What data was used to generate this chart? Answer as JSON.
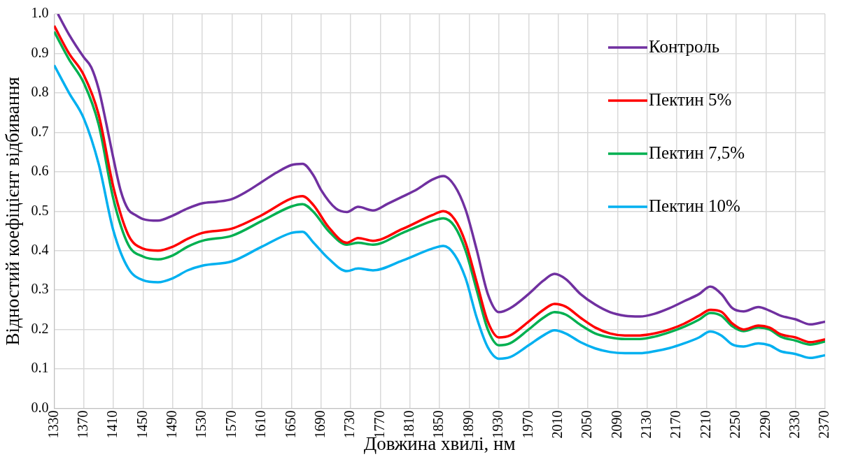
{
  "chart_data": {
    "type": "line",
    "xlabel": "Довжина хвилі, нм",
    "ylabel": "Відностий коефіцієнт відбивання",
    "xlim": [
      1330,
      2370
    ],
    "xticks": [
      1330,
      1370,
      1410,
      1450,
      1490,
      1530,
      1570,
      1610,
      1650,
      1690,
      1730,
      1770,
      1810,
      1850,
      1890,
      1930,
      1970,
      2010,
      2050,
      2090,
      2130,
      2170,
      2210,
      2250,
      2290,
      2330,
      2370
    ],
    "ylim": [
      0,
      1
    ],
    "yticks": [
      {
        "value": 0,
        "label": "0.0"
      },
      0.1,
      0.2,
      0.3,
      0.4,
      0.5,
      0.6,
      0.7,
      0.8,
      0.9,
      {
        "value": 1,
        "label": "1.0"
      }
    ],
    "grid": true,
    "legend": "top right",
    "marker": "none",
    "line_style": "solid",
    "series": [
      {
        "name": "Контроль",
        "color": "#7030a0",
        "x": [
          1335,
          1350,
          1370,
          1380,
          1390,
          1400,
          1410,
          1420,
          1430,
          1440,
          1450,
          1470,
          1490,
          1510,
          1530,
          1550,
          1570,
          1590,
          1610,
          1630,
          1650,
          1665,
          1680,
          1690,
          1710,
          1725,
          1740,
          1760,
          1780,
          1800,
          1820,
          1840,
          1855,
          1870,
          1885,
          1900,
          1915,
          1930,
          1945,
          1970,
          1990,
          2005,
          2020,
          2040,
          2060,
          2080,
          2100,
          2120,
          2140,
          2160,
          2180,
          2200,
          2215,
          2230,
          2245,
          2260,
          2280,
          2295,
          2310,
          2330,
          2350,
          2370
        ],
        "values": [
          1.0,
          0.948,
          0.89,
          0.865,
          0.81,
          0.725,
          0.633,
          0.55,
          0.504,
          0.49,
          0.48,
          0.476,
          0.489,
          0.507,
          0.52,
          0.524,
          0.531,
          0.55,
          0.574,
          0.598,
          0.617,
          0.62,
          0.59,
          0.554,
          0.507,
          0.498,
          0.511,
          0.502,
          0.519,
          0.537,
          0.556,
          0.58,
          0.589,
          0.565,
          0.504,
          0.402,
          0.29,
          0.244,
          0.254,
          0.29,
          0.324,
          0.341,
          0.328,
          0.29,
          0.263,
          0.244,
          0.235,
          0.233,
          0.24,
          0.254,
          0.272,
          0.29,
          0.309,
          0.29,
          0.254,
          0.246,
          0.257,
          0.248,
          0.235,
          0.226,
          0.213,
          0.22
        ]
      },
      {
        "name": "Пектин 5%",
        "color": "#ff0000",
        "x": [
          1330,
          1350,
          1370,
          1390,
          1410,
          1430,
          1450,
          1470,
          1490,
          1510,
          1530,
          1570,
          1610,
          1650,
          1665,
          1680,
          1700,
          1725,
          1740,
          1760,
          1800,
          1840,
          1855,
          1870,
          1885,
          1900,
          1915,
          1930,
          1945,
          1970,
          1990,
          2005,
          2020,
          2040,
          2060,
          2080,
          2100,
          2120,
          2140,
          2160,
          2180,
          2200,
          2215,
          2230,
          2245,
          2260,
          2280,
          2295,
          2310,
          2330,
          2350,
          2370
        ],
        "values": [
          0.97,
          0.9,
          0.845,
          0.745,
          0.56,
          0.44,
          0.405,
          0.4,
          0.41,
          0.43,
          0.445,
          0.456,
          0.49,
          0.532,
          0.538,
          0.515,
          0.46,
          0.42,
          0.432,
          0.425,
          0.455,
          0.49,
          0.5,
          0.48,
          0.42,
          0.32,
          0.22,
          0.18,
          0.185,
          0.22,
          0.25,
          0.265,
          0.258,
          0.23,
          0.205,
          0.19,
          0.185,
          0.185,
          0.19,
          0.2,
          0.215,
          0.235,
          0.25,
          0.245,
          0.215,
          0.2,
          0.21,
          0.205,
          0.188,
          0.18,
          0.168,
          0.175
        ]
      },
      {
        "name": "Пектин 7,5%",
        "color": "#00b050",
        "x": [
          1330,
          1350,
          1370,
          1390,
          1410,
          1430,
          1450,
          1470,
          1490,
          1510,
          1530,
          1570,
          1610,
          1650,
          1665,
          1680,
          1700,
          1725,
          1740,
          1760,
          1800,
          1840,
          1855,
          1870,
          1885,
          1900,
          1915,
          1930,
          1945,
          1970,
          1990,
          2005,
          2020,
          2040,
          2060,
          2080,
          2100,
          2120,
          2140,
          2160,
          2180,
          2200,
          2215,
          2230,
          2245,
          2260,
          2280,
          2295,
          2310,
          2330,
          2350,
          2370
        ],
        "values": [
          0.955,
          0.885,
          0.825,
          0.72,
          0.53,
          0.415,
          0.385,
          0.378,
          0.388,
          0.41,
          0.425,
          0.438,
          0.475,
          0.512,
          0.518,
          0.498,
          0.45,
          0.415,
          0.42,
          0.415,
          0.445,
          0.475,
          0.482,
          0.462,
          0.4,
          0.3,
          0.2,
          0.16,
          0.165,
          0.2,
          0.23,
          0.244,
          0.238,
          0.212,
          0.19,
          0.18,
          0.176,
          0.176,
          0.182,
          0.193,
          0.207,
          0.225,
          0.242,
          0.235,
          0.208,
          0.196,
          0.205,
          0.2,
          0.182,
          0.172,
          0.162,
          0.17
        ]
      },
      {
        "name": "Пектин 10%",
        "color": "#00b0f0",
        "x": [
          1330,
          1350,
          1370,
          1390,
          1410,
          1430,
          1450,
          1470,
          1490,
          1510,
          1530,
          1570,
          1610,
          1650,
          1665,
          1680,
          1700,
          1725,
          1740,
          1760,
          1800,
          1840,
          1855,
          1870,
          1885,
          1900,
          1915,
          1930,
          1945,
          1970,
          1990,
          2005,
          2020,
          2040,
          2060,
          2080,
          2100,
          2120,
          2140,
          2160,
          2180,
          2200,
          2215,
          2230,
          2245,
          2260,
          2280,
          2295,
          2310,
          2330,
          2350,
          2370
        ],
        "values": [
          0.87,
          0.8,
          0.735,
          0.62,
          0.45,
          0.355,
          0.325,
          0.32,
          0.33,
          0.35,
          0.362,
          0.373,
          0.41,
          0.445,
          0.448,
          0.42,
          0.38,
          0.348,
          0.355,
          0.35,
          0.375,
          0.405,
          0.412,
          0.39,
          0.33,
          0.23,
          0.155,
          0.126,
          0.13,
          0.16,
          0.185,
          0.198,
          0.19,
          0.168,
          0.152,
          0.143,
          0.14,
          0.14,
          0.145,
          0.153,
          0.165,
          0.18,
          0.195,
          0.185,
          0.162,
          0.157,
          0.165,
          0.16,
          0.145,
          0.138,
          0.128,
          0.135
        ]
      }
    ]
  }
}
